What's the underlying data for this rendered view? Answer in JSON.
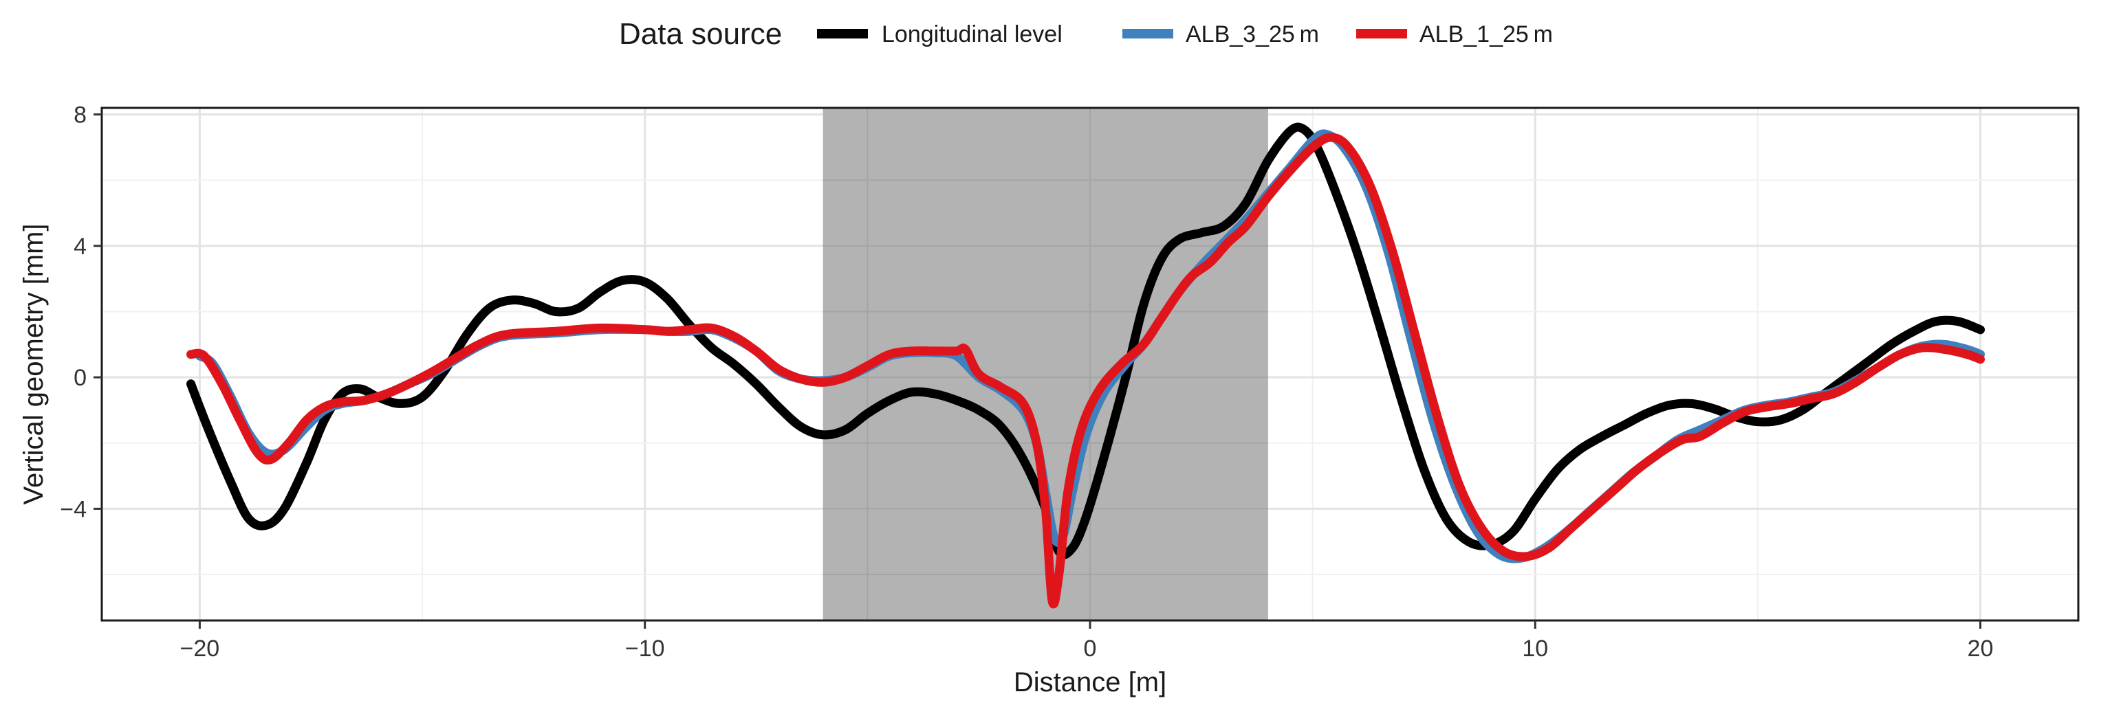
{
  "chart_data": {
    "type": "line",
    "xlabel": "Distance  [m]",
    "ylabel": "Vertical geometry [mm]",
    "xlim": [
      -22.2,
      22.2
    ],
    "ylim": [
      -7.4,
      8.2
    ],
    "x_ticks": [
      -20,
      -10,
      0,
      10,
      20
    ],
    "x_tick_labels": [
      "−20",
      "−10",
      "0",
      "10",
      "20"
    ],
    "y_ticks": [
      -4,
      0,
      4,
      8
    ],
    "y_tick_labels": [
      "−4",
      "0",
      "4",
      "8"
    ],
    "grid": true,
    "shaded_region": {
      "x": [
        -6,
        4
      ],
      "color": "#b3b3b3"
    },
    "legend": {
      "title": "Data source",
      "position": "top",
      "entries": [
        {
          "label": "Longitudinal level",
          "color": "#000000"
        },
        {
          "label": "ALB_3_25 m",
          "color": "#3f80bd"
        },
        {
          "label": "ALB_1_25 m",
          "color": "#e0141b"
        }
      ]
    },
    "series": [
      {
        "name": "Longitudinal level",
        "color": "#000000",
        "points": [
          [
            -20.2,
            -0.2
          ],
          [
            -19.8,
            -1.6
          ],
          [
            -19.3,
            -3.2
          ],
          [
            -18.9,
            -4.3
          ],
          [
            -18.5,
            -4.5
          ],
          [
            -18.1,
            -4.0
          ],
          [
            -17.6,
            -2.6
          ],
          [
            -17.2,
            -1.3
          ],
          [
            -16.8,
            -0.5
          ],
          [
            -16.4,
            -0.35
          ],
          [
            -16.0,
            -0.6
          ],
          [
            -15.5,
            -0.8
          ],
          [
            -15.0,
            -0.6
          ],
          [
            -14.5,
            0.2
          ],
          [
            -14.0,
            1.3
          ],
          [
            -13.5,
            2.1
          ],
          [
            -13.0,
            2.35
          ],
          [
            -12.5,
            2.25
          ],
          [
            -12.0,
            2.0
          ],
          [
            -11.5,
            2.1
          ],
          [
            -11.0,
            2.6
          ],
          [
            -10.5,
            2.95
          ],
          [
            -10.0,
            2.9
          ],
          [
            -9.5,
            2.4
          ],
          [
            -9.0,
            1.6
          ],
          [
            -8.5,
            0.9
          ],
          [
            -8.0,
            0.4
          ],
          [
            -7.5,
            -0.2
          ],
          [
            -7.0,
            -0.9
          ],
          [
            -6.5,
            -1.5
          ],
          [
            -6.0,
            -1.75
          ],
          [
            -5.5,
            -1.6
          ],
          [
            -5.0,
            -1.1
          ],
          [
            -4.5,
            -0.7
          ],
          [
            -4.0,
            -0.45
          ],
          [
            -3.5,
            -0.5
          ],
          [
            -3.0,
            -0.7
          ],
          [
            -2.5,
            -1.0
          ],
          [
            -2.0,
            -1.5
          ],
          [
            -1.5,
            -2.5
          ],
          [
            -1.0,
            -4.0
          ],
          [
            -0.7,
            -5.3
          ],
          [
            -0.4,
            -5.2
          ],
          [
            -0.1,
            -4.3
          ],
          [
            0.3,
            -2.5
          ],
          [
            0.8,
            0.0
          ],
          [
            1.2,
            2.2
          ],
          [
            1.6,
            3.6
          ],
          [
            2.0,
            4.2
          ],
          [
            2.5,
            4.4
          ],
          [
            3.0,
            4.6
          ],
          [
            3.5,
            5.3
          ],
          [
            4.0,
            6.6
          ],
          [
            4.5,
            7.5
          ],
          [
            4.8,
            7.55
          ],
          [
            5.1,
            7.0
          ],
          [
            5.5,
            5.7
          ],
          [
            6.0,
            3.8
          ],
          [
            6.5,
            1.6
          ],
          [
            7.0,
            -0.7
          ],
          [
            7.5,
            -2.8
          ],
          [
            8.0,
            -4.3
          ],
          [
            8.5,
            -5.0
          ],
          [
            9.0,
            -5.1
          ],
          [
            9.5,
            -4.7
          ],
          [
            10.0,
            -3.7
          ],
          [
            10.5,
            -2.8
          ],
          [
            11.0,
            -2.2
          ],
          [
            11.5,
            -1.8
          ],
          [
            12.0,
            -1.45
          ],
          [
            12.5,
            -1.1
          ],
          [
            13.0,
            -0.85
          ],
          [
            13.5,
            -0.8
          ],
          [
            14.0,
            -0.95
          ],
          [
            14.5,
            -1.2
          ],
          [
            15.0,
            -1.35
          ],
          [
            15.5,
            -1.3
          ],
          [
            16.0,
            -1.0
          ],
          [
            16.5,
            -0.5
          ],
          [
            17.0,
            0.0
          ],
          [
            17.5,
            0.5
          ],
          [
            18.0,
            1.0
          ],
          [
            18.5,
            1.4
          ],
          [
            19.0,
            1.7
          ],
          [
            19.5,
            1.7
          ],
          [
            20.0,
            1.45
          ]
        ]
      },
      {
        "name": "ALB_3_25 m",
        "color": "#3f80bd",
        "points": [
          [
            -20.0,
            0.65
          ],
          [
            -19.7,
            0.4
          ],
          [
            -19.3,
            -0.6
          ],
          [
            -18.9,
            -1.7
          ],
          [
            -18.5,
            -2.3
          ],
          [
            -18.1,
            -2.2
          ],
          [
            -17.6,
            -1.5
          ],
          [
            -17.2,
            -1.0
          ],
          [
            -16.8,
            -0.8
          ],
          [
            -16.3,
            -0.7
          ],
          [
            -15.8,
            -0.5
          ],
          [
            -15.3,
            -0.2
          ],
          [
            -14.8,
            0.1
          ],
          [
            -14.3,
            0.5
          ],
          [
            -13.8,
            0.9
          ],
          [
            -13.3,
            1.2
          ],
          [
            -12.8,
            1.3
          ],
          [
            -12.0,
            1.35
          ],
          [
            -11.0,
            1.45
          ],
          [
            -10.0,
            1.45
          ],
          [
            -9.5,
            1.4
          ],
          [
            -9.0,
            1.4
          ],
          [
            -8.5,
            1.45
          ],
          [
            -8.0,
            1.2
          ],
          [
            -7.5,
            0.8
          ],
          [
            -7.0,
            0.2
          ],
          [
            -6.5,
            -0.05
          ],
          [
            -6.0,
            -0.1
          ],
          [
            -5.5,
            0.0
          ],
          [
            -5.0,
            0.3
          ],
          [
            -4.5,
            0.65
          ],
          [
            -4.0,
            0.75
          ],
          [
            -3.5,
            0.75
          ],
          [
            -3.0,
            0.65
          ],
          [
            -2.5,
            0.0
          ],
          [
            -2.0,
            -0.4
          ],
          [
            -1.5,
            -1.0
          ],
          [
            -1.2,
            -2.0
          ],
          [
            -1.0,
            -3.5
          ],
          [
            -0.8,
            -4.9
          ],
          [
            -0.6,
            -4.8
          ],
          [
            -0.4,
            -3.5
          ],
          [
            -0.1,
            -1.8
          ],
          [
            0.3,
            -0.5
          ],
          [
            0.8,
            0.4
          ],
          [
            1.2,
            1.0
          ],
          [
            1.6,
            1.8
          ],
          [
            2.0,
            2.6
          ],
          [
            2.5,
            3.4
          ],
          [
            3.0,
            4.1
          ],
          [
            3.5,
            4.8
          ],
          [
            4.0,
            5.6
          ],
          [
            4.5,
            6.4
          ],
          [
            5.0,
            7.2
          ],
          [
            5.3,
            7.4
          ],
          [
            5.7,
            7.0
          ],
          [
            6.2,
            5.8
          ],
          [
            6.7,
            3.8
          ],
          [
            7.2,
            1.2
          ],
          [
            7.7,
            -1.3
          ],
          [
            8.2,
            -3.3
          ],
          [
            8.7,
            -4.7
          ],
          [
            9.2,
            -5.4
          ],
          [
            9.7,
            -5.5
          ],
          [
            10.2,
            -5.2
          ],
          [
            10.7,
            -4.7
          ],
          [
            11.2,
            -4.1
          ],
          [
            11.7,
            -3.5
          ],
          [
            12.2,
            -2.9
          ],
          [
            12.7,
            -2.4
          ],
          [
            13.2,
            -1.9
          ],
          [
            13.7,
            -1.6
          ],
          [
            14.2,
            -1.3
          ],
          [
            14.7,
            -1.0
          ],
          [
            15.2,
            -0.85
          ],
          [
            15.7,
            -0.75
          ],
          [
            16.2,
            -0.6
          ],
          [
            16.7,
            -0.45
          ],
          [
            17.2,
            -0.1
          ],
          [
            17.7,
            0.3
          ],
          [
            18.2,
            0.7
          ],
          [
            18.7,
            0.95
          ],
          [
            19.2,
            1.0
          ],
          [
            19.7,
            0.85
          ],
          [
            20.0,
            0.7
          ]
        ]
      },
      {
        "name": "ALB_1_25 m",
        "color": "#e0141b",
        "points": [
          [
            -20.2,
            0.7
          ],
          [
            -19.9,
            0.65
          ],
          [
            -19.5,
            -0.2
          ],
          [
            -19.1,
            -1.3
          ],
          [
            -18.7,
            -2.3
          ],
          [
            -18.4,
            -2.5
          ],
          [
            -18.0,
            -2.0
          ],
          [
            -17.6,
            -1.3
          ],
          [
            -17.2,
            -0.9
          ],
          [
            -16.8,
            -0.75
          ],
          [
            -16.3,
            -0.7
          ],
          [
            -15.8,
            -0.5
          ],
          [
            -15.3,
            -0.2
          ],
          [
            -14.8,
            0.15
          ],
          [
            -14.3,
            0.55
          ],
          [
            -13.8,
            0.95
          ],
          [
            -13.3,
            1.25
          ],
          [
            -12.8,
            1.35
          ],
          [
            -12.0,
            1.4
          ],
          [
            -11.0,
            1.5
          ],
          [
            -10.0,
            1.45
          ],
          [
            -9.5,
            1.4
          ],
          [
            -9.0,
            1.45
          ],
          [
            -8.5,
            1.5
          ],
          [
            -8.0,
            1.25
          ],
          [
            -7.5,
            0.8
          ],
          [
            -7.0,
            0.25
          ],
          [
            -6.5,
            -0.05
          ],
          [
            -6.0,
            -0.15
          ],
          [
            -5.5,
            0.0
          ],
          [
            -5.0,
            0.35
          ],
          [
            -4.5,
            0.7
          ],
          [
            -4.0,
            0.8
          ],
          [
            -3.5,
            0.8
          ],
          [
            -3.0,
            0.8
          ],
          [
            -2.8,
            0.85
          ],
          [
            -2.5,
            0.1
          ],
          [
            -2.0,
            -0.3
          ],
          [
            -1.5,
            -0.8
          ],
          [
            -1.2,
            -2.0
          ],
          [
            -1.0,
            -4.0
          ],
          [
            -0.85,
            -6.8
          ],
          [
            -0.7,
            -6.0
          ],
          [
            -0.5,
            -3.5
          ],
          [
            -0.2,
            -1.6
          ],
          [
            0.2,
            -0.4
          ],
          [
            0.7,
            0.4
          ],
          [
            1.2,
            1.0
          ],
          [
            1.6,
            1.8
          ],
          [
            2.0,
            2.6
          ],
          [
            2.3,
            3.1
          ],
          [
            2.7,
            3.5
          ],
          [
            3.1,
            4.1
          ],
          [
            3.5,
            4.6
          ],
          [
            4.0,
            5.5
          ],
          [
            4.5,
            6.3
          ],
          [
            5.0,
            7.0
          ],
          [
            5.4,
            7.3
          ],
          [
            5.8,
            7.0
          ],
          [
            6.3,
            5.8
          ],
          [
            6.8,
            3.8
          ],
          [
            7.3,
            1.3
          ],
          [
            7.8,
            -1.2
          ],
          [
            8.3,
            -3.3
          ],
          [
            8.8,
            -4.6
          ],
          [
            9.3,
            -5.3
          ],
          [
            9.8,
            -5.45
          ],
          [
            10.3,
            -5.2
          ],
          [
            10.8,
            -4.6
          ],
          [
            11.3,
            -4.0
          ],
          [
            11.8,
            -3.4
          ],
          [
            12.3,
            -2.8
          ],
          [
            12.8,
            -2.3
          ],
          [
            13.3,
            -1.9
          ],
          [
            13.7,
            -1.8
          ],
          [
            14.2,
            -1.4
          ],
          [
            14.7,
            -1.05
          ],
          [
            15.2,
            -0.9
          ],
          [
            15.7,
            -0.8
          ],
          [
            16.2,
            -0.65
          ],
          [
            16.7,
            -0.5
          ],
          [
            17.2,
            -0.15
          ],
          [
            17.7,
            0.3
          ],
          [
            18.2,
            0.7
          ],
          [
            18.7,
            0.9
          ],
          [
            19.2,
            0.85
          ],
          [
            19.7,
            0.7
          ],
          [
            20.0,
            0.55
          ]
        ]
      }
    ]
  }
}
